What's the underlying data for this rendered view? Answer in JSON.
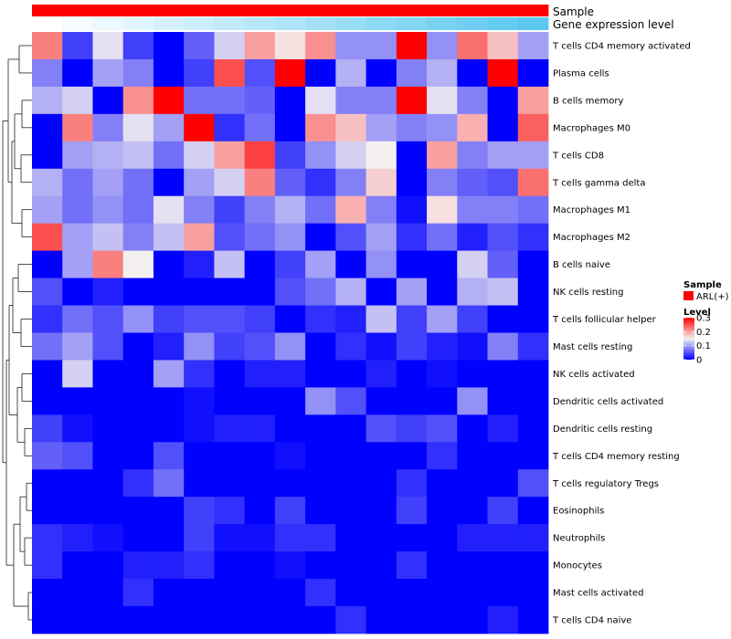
{
  "chart_data": {
    "type": "heatmap",
    "annotations": [
      {
        "name": "Sample",
        "kind": "constant",
        "color": "#ff0000"
      },
      {
        "name": "Gene expression level",
        "kind": "gradient",
        "values": [
          0.0,
          0.0625,
          0.125,
          0.1875,
          0.25,
          0.3125,
          0.375,
          0.4375,
          0.5,
          0.5625,
          0.625,
          0.6875,
          0.75,
          0.8125,
          0.875,
          0.9375,
          1.0
        ],
        "low_color": "#ffffff",
        "high_color": "#5bc8ef"
      }
    ],
    "rows": [
      "T cells CD4 memory activated",
      "Plasma cells",
      "B cells memory",
      "Macrophages M0",
      "T cells CD8",
      "T cells gamma delta",
      "Macrophages M1",
      "Macrophages M2",
      "B cells naive",
      "NK cells resting",
      "T cells follicular helper",
      "Mast cells resting",
      "NK cells activated",
      "Dendritic cells activated",
      "Dendritic cells resting",
      "T cells CD4 memory resting",
      "T cells regulatory  Tregs",
      "Eosinophils",
      "Neutrophils",
      "Monocytes",
      "Mast cells activated",
      "T cells CD4 naive"
    ],
    "n_columns": 17,
    "values": [
      [
        0.22,
        0.04,
        0.14,
        0.04,
        0.0,
        0.06,
        0.13,
        0.2,
        0.16,
        0.21,
        0.09,
        0.09,
        0.3,
        0.09,
        0.23,
        0.18,
        0.1
      ],
      [
        0.08,
        0.0,
        0.1,
        0.08,
        0.0,
        0.04,
        0.25,
        0.05,
        0.3,
        0.0,
        0.11,
        0.0,
        0.08,
        0.11,
        0.0,
        0.3,
        0.0
      ],
      [
        0.11,
        0.13,
        0.0,
        0.21,
        0.3,
        0.07,
        0.07,
        0.06,
        0.0,
        0.14,
        0.08,
        0.08,
        0.3,
        0.14,
        0.08,
        0.0,
        0.2
      ],
      [
        0.0,
        0.22,
        0.08,
        0.14,
        0.1,
        0.3,
        0.03,
        0.07,
        0.0,
        0.21,
        0.18,
        0.1,
        0.08,
        0.09,
        0.19,
        0.0,
        0.24
      ],
      [
        0.0,
        0.1,
        0.11,
        0.12,
        0.07,
        0.13,
        0.2,
        0.26,
        0.04,
        0.09,
        0.13,
        0.15,
        0.0,
        0.2,
        0.08,
        0.1,
        0.1
      ],
      [
        0.11,
        0.07,
        0.1,
        0.07,
        0.0,
        0.1,
        0.13,
        0.22,
        0.06,
        0.03,
        0.08,
        0.17,
        0.0,
        0.08,
        0.06,
        0.05,
        0.23
      ],
      [
        0.1,
        0.07,
        0.09,
        0.07,
        0.14,
        0.08,
        0.04,
        0.08,
        0.11,
        0.07,
        0.19,
        0.08,
        0.01,
        0.16,
        0.08,
        0.08,
        0.07
      ],
      [
        0.25,
        0.1,
        0.12,
        0.08,
        0.12,
        0.2,
        0.05,
        0.07,
        0.09,
        0.0,
        0.05,
        0.1,
        0.03,
        0.07,
        0.02,
        0.05,
        0.03
      ],
      [
        0.0,
        0.1,
        0.22,
        0.15,
        0.0,
        0.02,
        0.12,
        0.0,
        0.04,
        0.1,
        0.0,
        0.09,
        0.0,
        0.0,
        0.13,
        0.06,
        0.0
      ],
      [
        0.05,
        0.0,
        0.02,
        0.0,
        0.0,
        0.0,
        0.0,
        0.0,
        0.05,
        0.07,
        0.11,
        0.0,
        0.1,
        0.0,
        0.11,
        0.12,
        0.0
      ],
      [
        0.03,
        0.07,
        0.05,
        0.09,
        0.04,
        0.05,
        0.05,
        0.04,
        0.0,
        0.03,
        0.02,
        0.12,
        0.04,
        0.1,
        0.04,
        0.0,
        0.0
      ],
      [
        0.07,
        0.1,
        0.05,
        0.0,
        0.02,
        0.09,
        0.04,
        0.05,
        0.09,
        0.0,
        0.03,
        0.01,
        0.04,
        0.02,
        0.01,
        0.08,
        0.03
      ],
      [
        0.0,
        0.13,
        0.0,
        0.0,
        0.1,
        0.03,
        0.0,
        0.02,
        0.02,
        0.0,
        0.0,
        0.02,
        0.0,
        0.01,
        0.0,
        0.0,
        0.0
      ],
      [
        0.0,
        0.0,
        0.0,
        0.0,
        0.0,
        0.01,
        0.0,
        0.0,
        0.0,
        0.09,
        0.05,
        0.0,
        0.0,
        0.0,
        0.09,
        0.0,
        0.0
      ],
      [
        0.04,
        0.01,
        0.0,
        0.0,
        0.0,
        0.01,
        0.02,
        0.02,
        0.0,
        0.0,
        0.0,
        0.05,
        0.04,
        0.05,
        0.0,
        0.02,
        0.0
      ],
      [
        0.06,
        0.05,
        0.0,
        0.0,
        0.05,
        0.0,
        0.0,
        0.0,
        0.01,
        0.0,
        0.0,
        0.0,
        0.0,
        0.03,
        0.0,
        0.0,
        0.0
      ],
      [
        0.0,
        0.0,
        0.0,
        0.03,
        0.07,
        0.0,
        0.0,
        0.0,
        0.0,
        0.0,
        0.0,
        0.0,
        0.03,
        0.0,
        0.0,
        0.0,
        0.05
      ],
      [
        0.0,
        0.0,
        0.0,
        0.0,
        0.0,
        0.04,
        0.03,
        0.0,
        0.04,
        0.0,
        0.0,
        0.0,
        0.04,
        0.0,
        0.0,
        0.04,
        0.0
      ],
      [
        0.03,
        0.02,
        0.01,
        0.0,
        0.0,
        0.04,
        0.01,
        0.01,
        0.03,
        0.03,
        0.0,
        0.0,
        0.0,
        0.0,
        0.02,
        0.02,
        0.02
      ],
      [
        0.03,
        0.0,
        0.0,
        0.02,
        0.02,
        0.03,
        0.0,
        0.0,
        0.01,
        0.0,
        0.0,
        0.0,
        0.03,
        0.0,
        0.0,
        0.0,
        0.0
      ],
      [
        0.0,
        0.0,
        0.0,
        0.03,
        0.0,
        0.0,
        0.0,
        0.0,
        0.0,
        0.03,
        0.0,
        0.0,
        0.0,
        0.0,
        0.0,
        0.0,
        0.0
      ],
      [
        0.0,
        0.0,
        0.0,
        0.0,
        0.0,
        0.0,
        0.0,
        0.0,
        0.0,
        0.0,
        0.03,
        0.0,
        0.0,
        0.0,
        0.0,
        0.02,
        0.0
      ]
    ],
    "color_scale": {
      "stops": [
        {
          "value": 0.0,
          "color": "#0000ff"
        },
        {
          "value": 0.15,
          "color": "#f5f0f0"
        },
        {
          "value": 0.3,
          "color": "#ff0000"
        }
      ]
    },
    "legend": {
      "sample_title": "Sample",
      "sample_entry": "ARL(+)",
      "level_title": "Level",
      "ticks": [
        0.3,
        0.2,
        0.1,
        0
      ],
      "tick_labels": [
        "0.3",
        "0.2",
        "0.1",
        "0"
      ],
      "placement": "right"
    },
    "dendrogram": "rows, left"
  }
}
